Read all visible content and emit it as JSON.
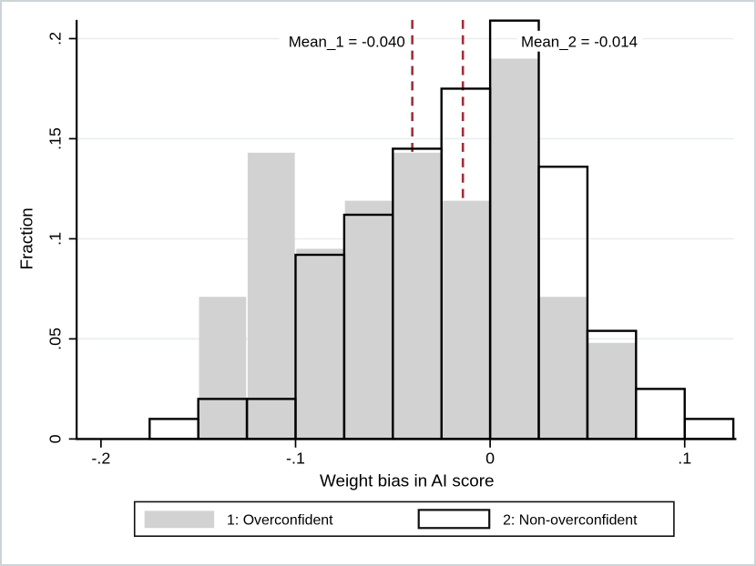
{
  "chart_data": {
    "type": "histogram",
    "title": "",
    "xlabel": "Weight bias in AI score",
    "ylabel": "Fraction",
    "bin_width": 0.025,
    "xlim": [
      -0.225,
      0.135
    ],
    "ylim": [
      0,
      0.209
    ],
    "grid": "horizontal-light",
    "x_ticks": {
      "values": [
        -0.2,
        -0.1,
        0,
        0.1
      ],
      "labels": [
        "-.2",
        "-.1",
        "0",
        ".1"
      ]
    },
    "y_ticks": {
      "values": [
        0,
        0.05,
        0.1,
        0.15,
        0.2
      ],
      "labels": [
        "0",
        ".05",
        ".1",
        ".15",
        ".2"
      ]
    },
    "series": [
      {
        "name": "1: Overconfident",
        "style": "filled",
        "bin_start": -0.15,
        "fractions": [
          0.071,
          0.143,
          0.095,
          0.119,
          0.143,
          0.119,
          0.19,
          0.071,
          0.048
        ]
      },
      {
        "name": "2: Non-overconfident",
        "style": "hollow-outline",
        "bin_start": -0.175,
        "fractions": [
          0.01,
          0.02,
          0.02,
          0.092,
          0.112,
          0.145,
          0.175,
          0.209,
          0.136,
          0.054,
          0.025,
          0.01
        ]
      }
    ],
    "mean_lines": [
      {
        "label": "Mean_1 = -0.040",
        "value": -0.04
      },
      {
        "label": "Mean_2 = -0.014",
        "value": -0.014
      }
    ],
    "legend_position": "bottom-center"
  },
  "legend": {
    "items": [
      {
        "label": "1: Overconfident",
        "swatch": "gray-filled"
      },
      {
        "label": "2: Non-overconfident",
        "swatch": "white-outlined"
      }
    ]
  },
  "colors": {
    "bar_fill": "#d2d2d2",
    "bar_outline": "#000000",
    "grid_line": "#e8eff1",
    "mean_line": "#9e2f36",
    "axis": "#000000",
    "text": "#000000",
    "figure_border": "#ccd4d8",
    "background": "#ffffff"
  }
}
